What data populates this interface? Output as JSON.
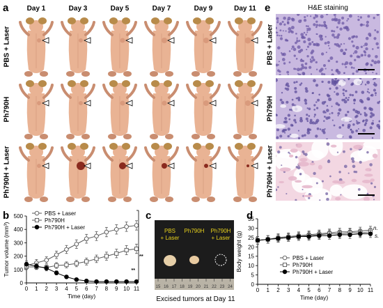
{
  "panels": {
    "a": "a",
    "b": "b",
    "c": "c",
    "d": "d",
    "e": "e"
  },
  "days": [
    "Day 1",
    "Day 3",
    "Day 5",
    "Day 7",
    "Day 9",
    "Day 11"
  ],
  "groups": [
    "PBS + Laser",
    "Ph790H",
    "Ph790H + Laser"
  ],
  "he": {
    "title": "H&E staining",
    "rows": [
      "PBS + Laser",
      "Ph790H",
      "Ph790H + Laser"
    ]
  },
  "photo": {
    "labels": [
      {
        "text": "PBS\n+ Laser"
      },
      {
        "text": "Ph790H"
      },
      {
        "text": "Ph790H\n+ Laser"
      }
    ],
    "ruler": [
      "15",
      "16",
      "17",
      "18",
      "19",
      "20",
      "21",
      "22",
      "23",
      "24"
    ],
    "caption": "Excised tumors at Day 11"
  },
  "colors": {
    "skin": "#e9b394",
    "skin_shadow": "#c98d70",
    "ear": "#b88b4a",
    "tumor": "#8a2a1e",
    "he_purple": "#9f88c8",
    "he_pink": "#e6b8cc",
    "photo_label": "#e8d21c",
    "series_line": "#555555"
  },
  "chart_data": [
    {
      "type": "line",
      "panel": "b",
      "xlabel": "Time (day)",
      "ylabel": "Tumor volume (mm³)",
      "xlim": [
        0,
        11
      ],
      "ylim": [
        0,
        500
      ],
      "xticks": [
        0,
        1,
        2,
        3,
        4,
        5,
        6,
        7,
        8,
        9,
        10,
        11
      ],
      "yticks": [
        0,
        100,
        200,
        300,
        400,
        500
      ],
      "x": [
        0,
        1,
        2,
        3,
        4,
        5,
        6,
        7,
        8,
        9,
        10,
        11
      ],
      "legend_position": "top-left",
      "significance": [
        "***",
        "**"
      ],
      "series": [
        {
          "name": "PBS + Laser",
          "marker": "open-circle",
          "values": [
            130,
            150,
            170,
            210,
            250,
            290,
            330,
            350,
            380,
            400,
            420,
            430
          ],
          "errors": [
            25,
            25,
            25,
            28,
            30,
            32,
            33,
            33,
            35,
            35,
            35,
            35
          ]
        },
        {
          "name": "Ph790H",
          "marker": "open-square",
          "values": [
            120,
            120,
            115,
            130,
            135,
            145,
            160,
            180,
            200,
            220,
            245,
            255
          ],
          "errors": [
            20,
            20,
            20,
            22,
            22,
            24,
            26,
            28,
            30,
            32,
            34,
            35
          ]
        },
        {
          "name": "Ph790H + Laser",
          "marker": "filled-circle",
          "values": [
            140,
            125,
            110,
            75,
            45,
            25,
            15,
            10,
            10,
            10,
            10,
            10
          ],
          "errors": [
            25,
            22,
            20,
            15,
            10,
            6,
            4,
            3,
            3,
            3,
            3,
            3
          ]
        }
      ]
    },
    {
      "type": "line",
      "panel": "d",
      "xlabel": "Time (day)",
      "ylabel": "Body weight (g)",
      "xlim": [
        0,
        11
      ],
      "ylim": [
        0,
        35
      ],
      "xticks": [
        0,
        1,
        2,
        3,
        4,
        5,
        6,
        7,
        8,
        9,
        10,
        11
      ],
      "yticks": [
        0,
        5,
        10,
        15,
        20,
        25,
        30,
        35
      ],
      "x": [
        0,
        1,
        2,
        3,
        4,
        5,
        6,
        7,
        8,
        9,
        10,
        11
      ],
      "legend_position": "bottom-center",
      "significance": [
        "n.",
        "s."
      ],
      "series": [
        {
          "name": "PBS + Laser",
          "marker": "open-circle",
          "values": [
            23.5,
            24.0,
            25.0,
            25.5,
            26.0,
            26.5,
            27.0,
            27.5,
            28.0,
            28.0,
            28.5,
            29.0
          ],
          "errors": [
            2.0,
            2.0,
            2.0,
            2.0,
            2.0,
            2.0,
            2.0,
            2.0,
            2.0,
            2.0,
            2.0,
            2.0
          ]
        },
        {
          "name": "Ph790H",
          "marker": "open-square",
          "values": [
            23.5,
            24.0,
            24.5,
            25.0,
            25.5,
            26.0,
            26.5,
            27.0,
            27.0,
            27.5,
            27.5,
            28.0
          ],
          "errors": [
            2.0,
            2.0,
            2.0,
            2.0,
            2.0,
            2.0,
            2.0,
            2.0,
            2.0,
            2.0,
            2.0,
            2.0
          ]
        },
        {
          "name": "Ph790H + Laser",
          "marker": "filled-circle",
          "values": [
            23.5,
            24.0,
            24.5,
            25.0,
            25.5,
            25.5,
            26.0,
            26.0,
            26.5,
            26.5,
            27.0,
            27.0
          ],
          "errors": [
            2.0,
            2.0,
            2.0,
            2.0,
            2.0,
            2.0,
            2.0,
            2.0,
            2.0,
            2.0,
            2.0,
            2.0
          ]
        }
      ]
    }
  ]
}
